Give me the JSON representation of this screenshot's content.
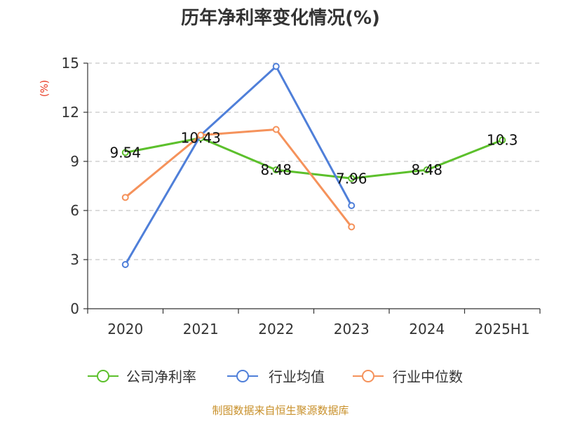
{
  "chart_data": {
    "type": "line",
    "title": "历年净利率变化情况(%)",
    "ylabel": "(%)",
    "xlabel": "",
    "categories": [
      "2020",
      "2021",
      "2022",
      "2023",
      "2024",
      "2025H1"
    ],
    "ylim": [
      0,
      15
    ],
    "yticks": [
      0,
      3,
      6,
      9,
      12,
      15
    ],
    "grid": true,
    "legend_position": "bottom",
    "series": [
      {
        "name": "公司净利率",
        "color": "#5cc02c",
        "values": [
          9.54,
          10.43,
          8.48,
          7.96,
          8.48,
          10.3
        ],
        "labels": [
          "9.54",
          "10.43",
          "8.48",
          "7.96",
          "8.48",
          "10.3"
        ]
      },
      {
        "name": "行业均值",
        "color": "#4f7fd9",
        "values": [
          2.7,
          10.6,
          14.8,
          6.3,
          null,
          null
        ]
      },
      {
        "name": "行业中位数",
        "color": "#f5925b",
        "values": [
          6.8,
          10.6,
          10.95,
          5.0,
          null,
          null
        ]
      }
    ]
  },
  "footer": {
    "source": "制图数据来自恒生聚源数据库"
  }
}
